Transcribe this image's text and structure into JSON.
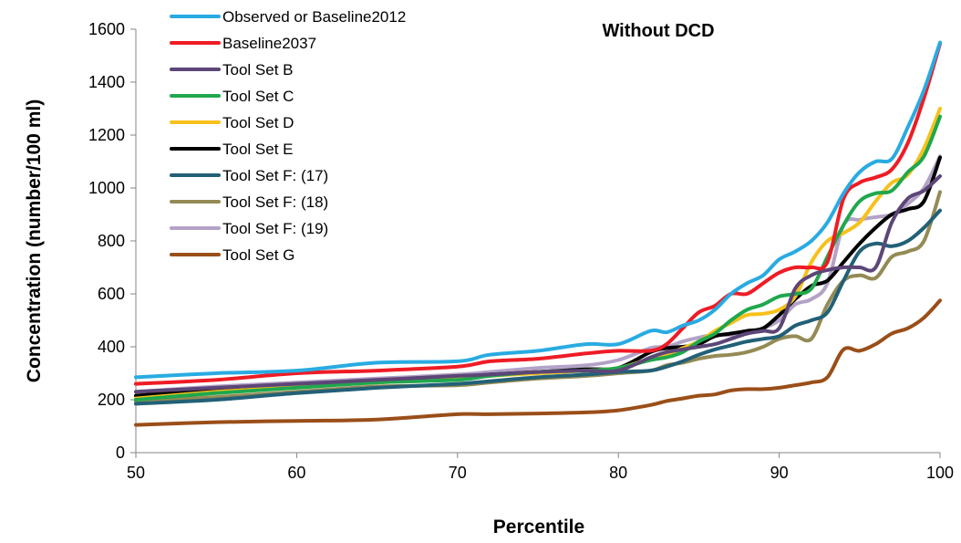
{
  "chart_data": {
    "type": "line",
    "title": "Without DCD",
    "xlabel": "Percentile",
    "ylabel": "Concentration (number/100 ml)",
    "xlim": [
      50,
      100
    ],
    "ylim": [
      0,
      1600
    ],
    "xticks": [
      "50",
      "60",
      "70",
      "80",
      "90",
      "100"
    ],
    "yticks": [
      "0",
      "200",
      "400",
      "600",
      "800",
      "1000",
      "1200",
      "1400",
      "1600"
    ],
    "grid": false,
    "legend_position": "top-left",
    "x": [
      50,
      55,
      60,
      65,
      70,
      72,
      75,
      78,
      80,
      82,
      83,
      84,
      85,
      86,
      87,
      88,
      89,
      90,
      91,
      92,
      93,
      94,
      95,
      96,
      97,
      98,
      99,
      100
    ],
    "series": [
      {
        "name": "Observed or Baseline2012",
        "color": "#29abe2",
        "values": [
          285,
          300,
          310,
          340,
          345,
          370,
          385,
          410,
          410,
          460,
          455,
          480,
          500,
          540,
          600,
          640,
          670,
          730,
          760,
          800,
          870,
          980,
          1060,
          1100,
          1110,
          1230,
          1370,
          1550
        ]
      },
      {
        "name": "Baseline2037",
        "color": "#ee1c25",
        "values": [
          260,
          275,
          300,
          310,
          325,
          345,
          355,
          375,
          385,
          385,
          410,
          470,
          530,
          555,
          600,
          600,
          640,
          680,
          700,
          700,
          720,
          960,
          1020,
          1040,
          1070,
          1170,
          1340,
          1545
        ]
      },
      {
        "name": "Tool Set B",
        "color": "#5c4677",
        "values": [
          230,
          245,
          260,
          275,
          290,
          295,
          305,
          310,
          310,
          360,
          380,
          390,
          400,
          410,
          430,
          450,
          460,
          470,
          620,
          670,
          690,
          700,
          700,
          700,
          870,
          960,
          990,
          1045
        ]
      },
      {
        "name": "Tool Set C",
        "color": "#20a74d",
        "values": [
          200,
          225,
          245,
          265,
          275,
          290,
          305,
          310,
          320,
          350,
          360,
          380,
          420,
          450,
          500,
          540,
          560,
          590,
          600,
          620,
          740,
          860,
          950,
          980,
          990,
          1060,
          1120,
          1270
        ]
      },
      {
        "name": "Tool Set D",
        "color": "#f7c11b",
        "values": [
          205,
          230,
          250,
          265,
          280,
          290,
          300,
          310,
          320,
          355,
          370,
          395,
          420,
          460,
          490,
          520,
          525,
          540,
          590,
          720,
          800,
          830,
          870,
          950,
          1020,
          1050,
          1150,
          1300
        ]
      },
      {
        "name": "Tool Set E",
        "color": "#000000",
        "values": [
          215,
          240,
          255,
          270,
          285,
          295,
          305,
          315,
          320,
          380,
          395,
          400,
          410,
          440,
          450,
          460,
          470,
          520,
          580,
          630,
          650,
          720,
          790,
          850,
          900,
          920,
          950,
          1115
        ]
      },
      {
        "name": "Tool Set F: (17)",
        "color": "#226077",
        "values": [
          185,
          200,
          225,
          245,
          260,
          270,
          285,
          295,
          305,
          310,
          325,
          345,
          370,
          390,
          405,
          420,
          430,
          440,
          480,
          500,
          530,
          650,
          760,
          790,
          780,
          800,
          850,
          915
        ]
      },
      {
        "name": "Tool Set F: (18)",
        "color": "#948a54",
        "values": [
          195,
          210,
          230,
          250,
          255,
          265,
          280,
          290,
          300,
          310,
          330,
          340,
          355,
          365,
          370,
          380,
          400,
          430,
          440,
          430,
          560,
          650,
          670,
          660,
          740,
          760,
          800,
          985
        ]
      },
      {
        "name": "Tool Set F: (19)",
        "color": "#b3a2c7",
        "values": [
          230,
          250,
          265,
          280,
          295,
          305,
          320,
          330,
          350,
          395,
          400,
          420,
          435,
          445,
          445,
          450,
          470,
          500,
          560,
          580,
          640,
          860,
          880,
          890,
          900,
          940,
          1000,
          1120
        ]
      },
      {
        "name": "Tool Set G",
        "color": "#9a4e18",
        "values": [
          105,
          115,
          120,
          125,
          145,
          145,
          148,
          152,
          160,
          180,
          195,
          205,
          215,
          220,
          235,
          240,
          240,
          245,
          255,
          265,
          285,
          390,
          385,
          410,
          450,
          470,
          510,
          575
        ]
      }
    ]
  }
}
